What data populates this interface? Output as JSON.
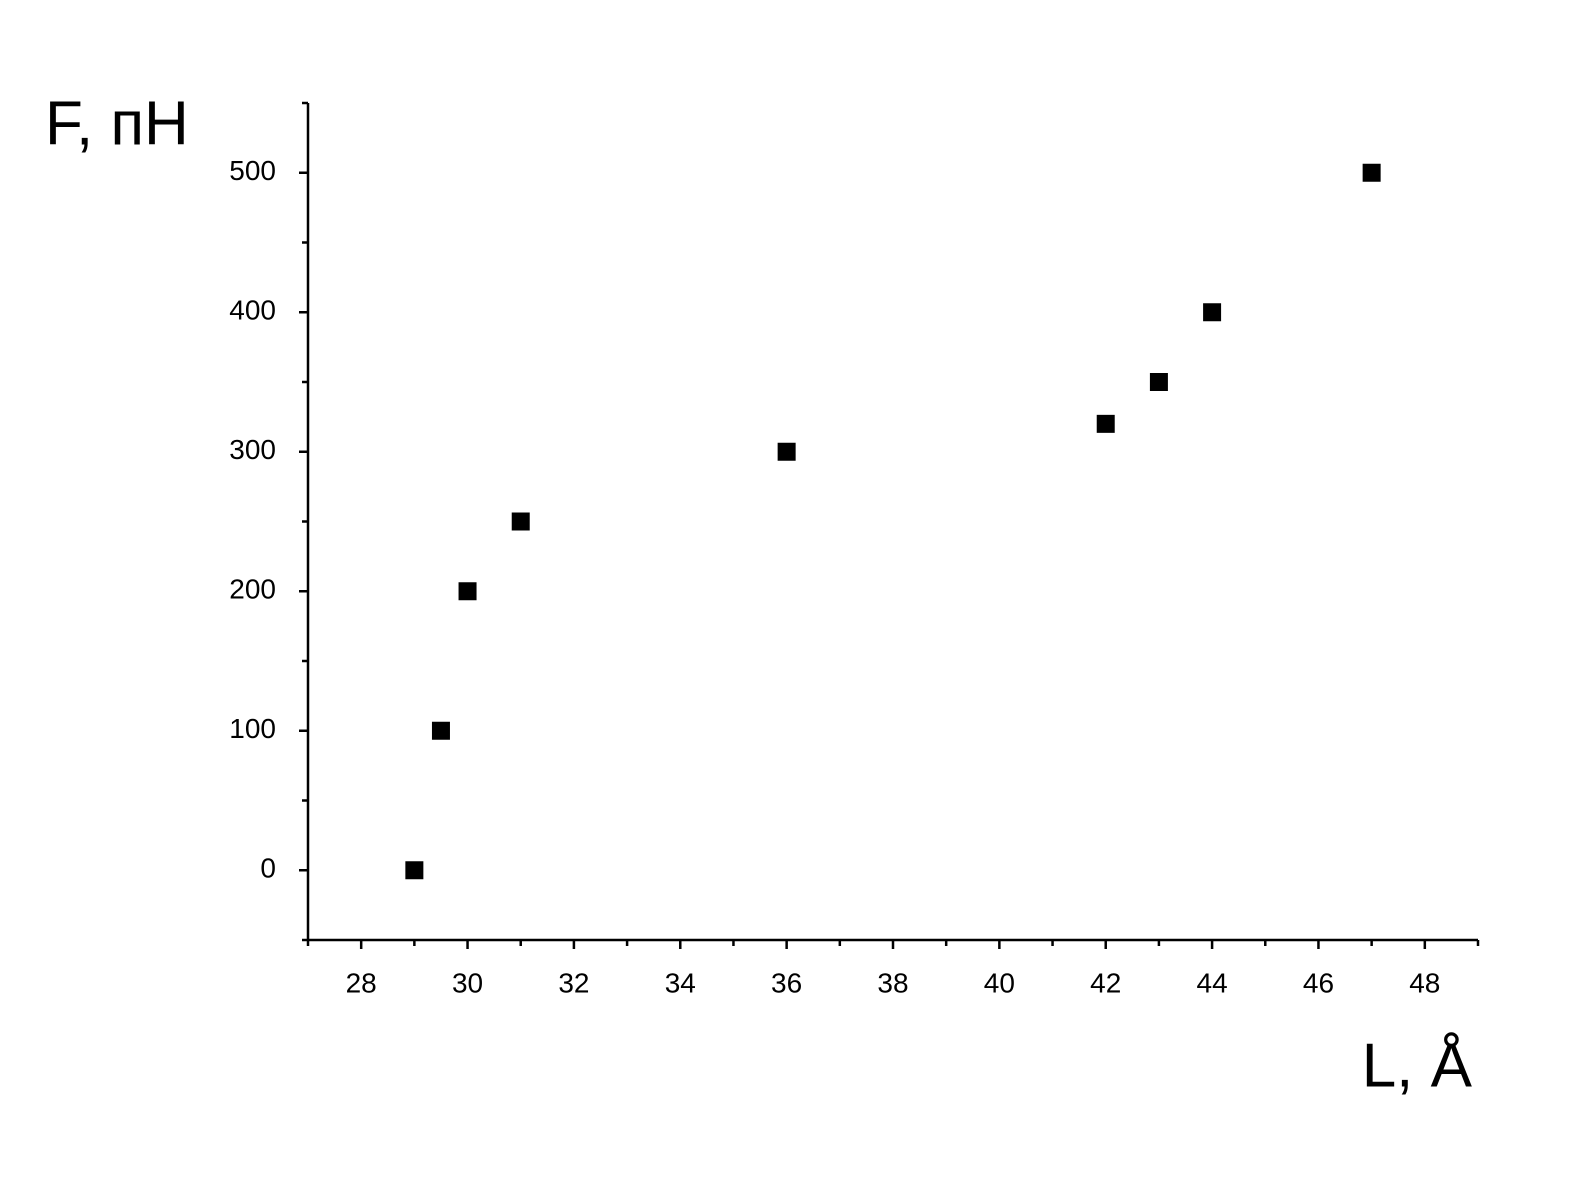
{
  "chart_data": {
    "type": "scatter",
    "x_label": "L, Å",
    "y_label": "F, пН",
    "series": [
      {
        "name": "F",
        "color": "#000000",
        "x": [
          29,
          29.5,
          30,
          31,
          36,
          42,
          43,
          44,
          47
        ],
        "values": [
          0,
          100,
          200,
          250,
          300,
          320,
          350,
          400,
          500
        ]
      }
    ],
    "xlim": [
      27,
      49
    ],
    "ylim": [
      -50,
      550
    ],
    "xticks": [
      28,
      30,
      32,
      34,
      36,
      38,
      40,
      42,
      44,
      46,
      48
    ],
    "xminorticks": [
      27,
      29,
      31,
      33,
      35,
      37,
      39,
      41,
      43,
      45,
      47,
      49
    ],
    "yticks": [
      0,
      100,
      200,
      300,
      400,
      500
    ],
    "yminorticks": [
      -50,
      50,
      150,
      250,
      350,
      450,
      550
    ],
    "grid": false
  }
}
